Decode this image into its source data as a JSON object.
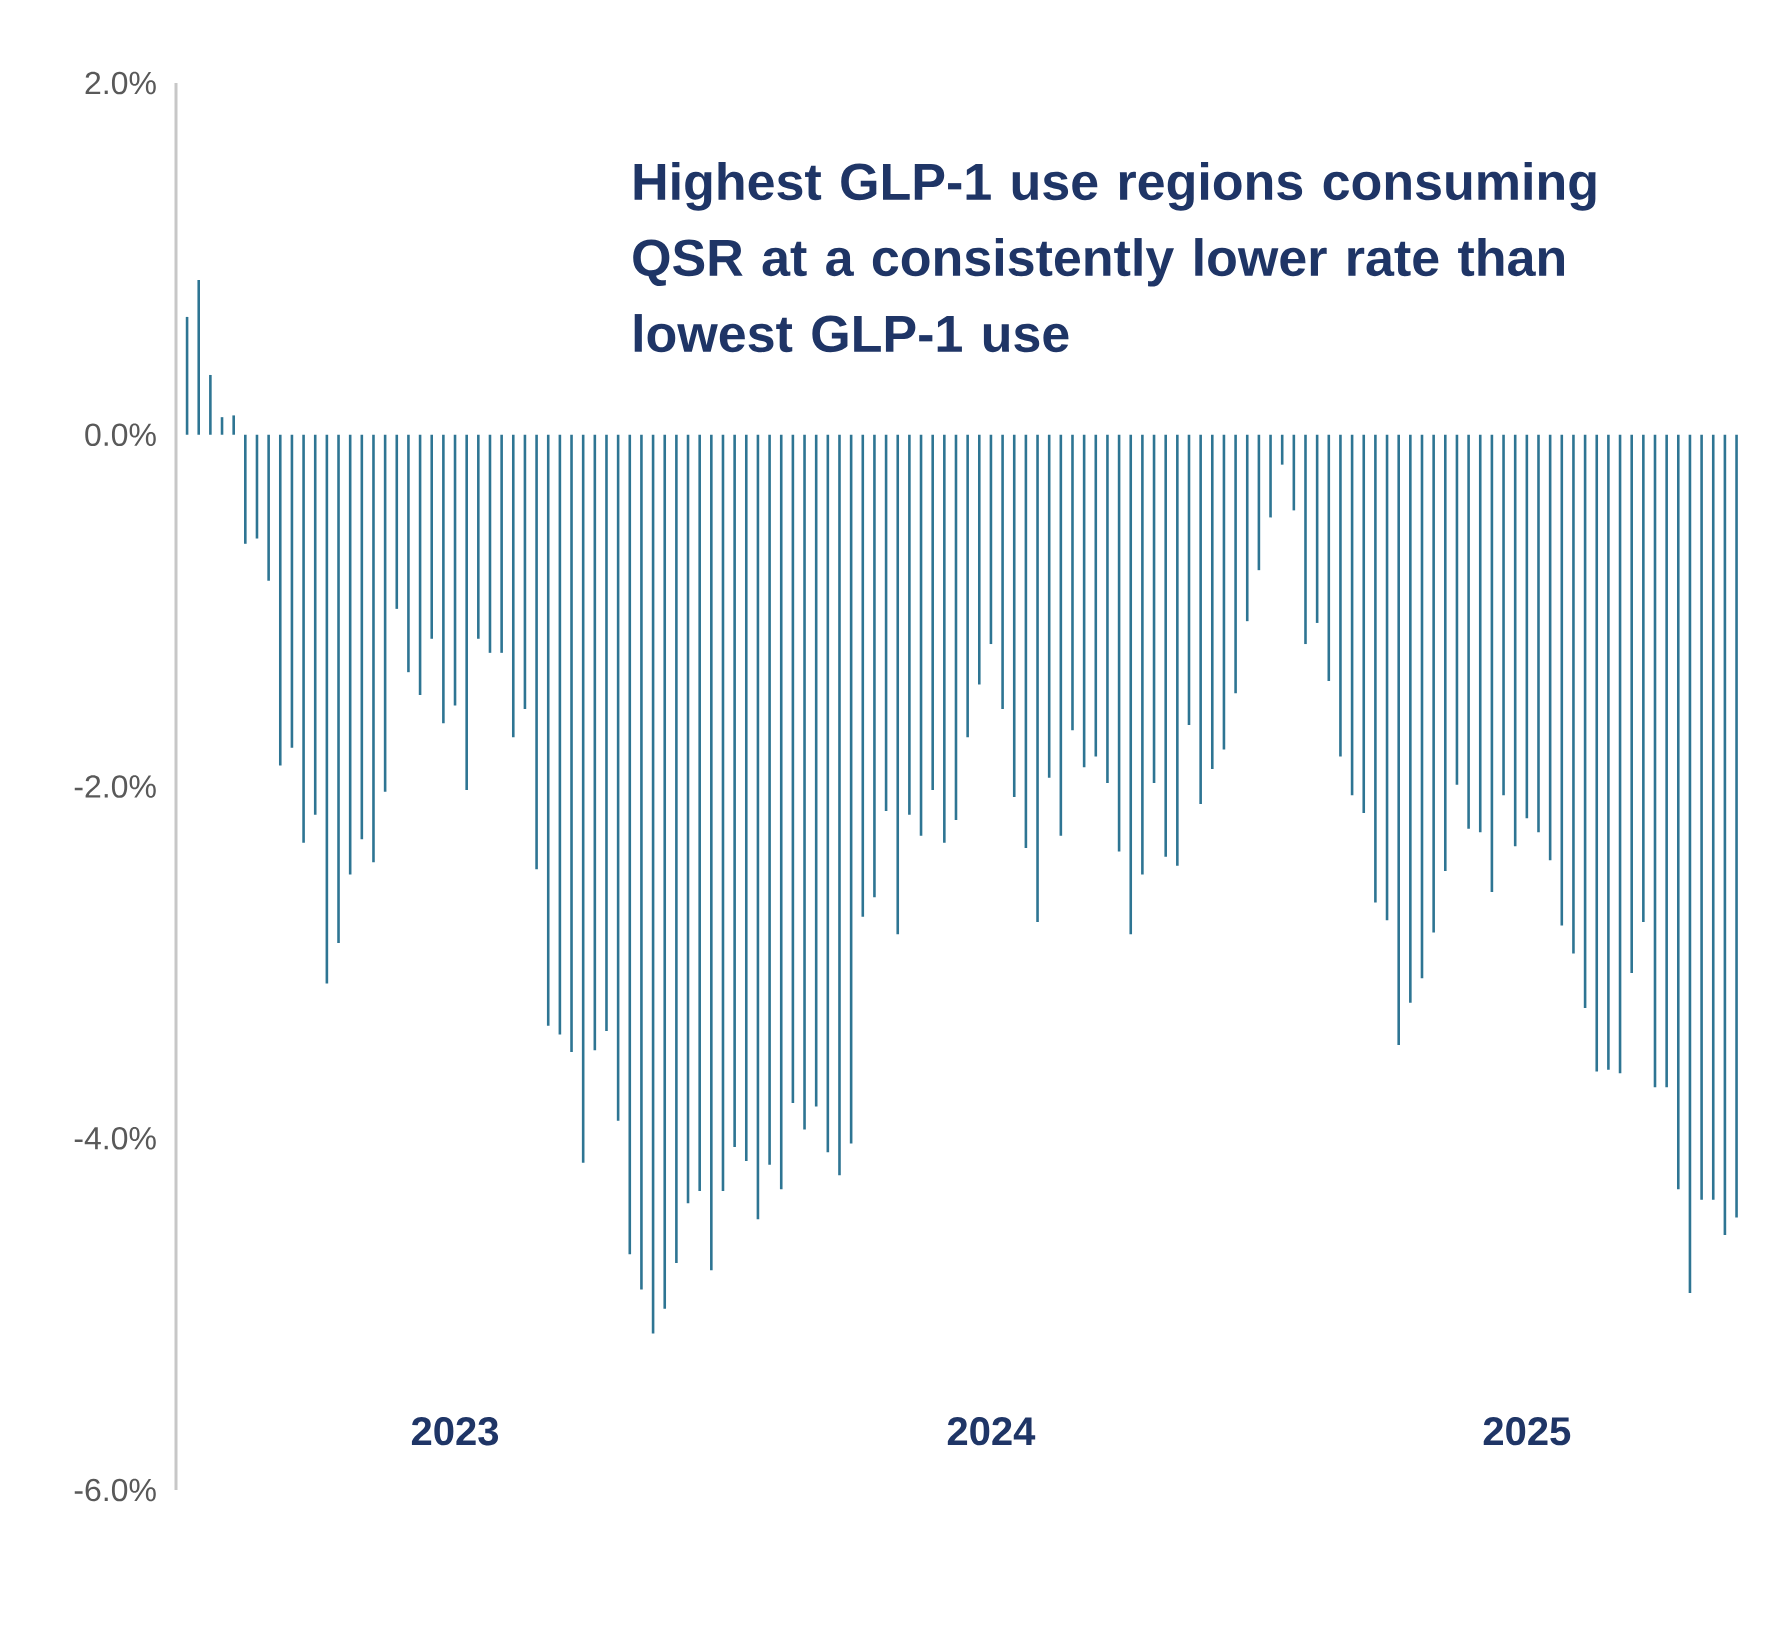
{
  "chart_data": {
    "type": "bar",
    "title": "Highest GLP-1 use regions consuming QSR at a consistently lower rate than lowest GLP-1 use",
    "categories": [
      null,
      null,
      null,
      null,
      null,
      null,
      null,
      null,
      null,
      null,
      null,
      null,
      null,
      null,
      null,
      null,
      null,
      null,
      null,
      null,
      null,
      null,
      null,
      "2023",
      null,
      null,
      null,
      null,
      null,
      null,
      null,
      null,
      null,
      null,
      null,
      null,
      null,
      null,
      null,
      null,
      null,
      null,
      null,
      null,
      null,
      null,
      null,
      null,
      null,
      null,
      null,
      null,
      null,
      null,
      null,
      null,
      null,
      null,
      null,
      null,
      null,
      null,
      null,
      null,
      null,
      null,
      null,
      null,
      null,
      "2024",
      null,
      null,
      null,
      null,
      null,
      null,
      null,
      null,
      null,
      null,
      null,
      null,
      null,
      null,
      null,
      null,
      null,
      null,
      null,
      null,
      null,
      null,
      null,
      null,
      null,
      null,
      null,
      null,
      null,
      null,
      null,
      null,
      null,
      null,
      null,
      null,
      null,
      null,
      null,
      null,
      null,
      null,
      null,
      null,
      null,
      "2025",
      null,
      null,
      null,
      null,
      null,
      null,
      null,
      null,
      null,
      null,
      null,
      null,
      null,
      null,
      null,
      null,
      null,
      null
    ],
    "values": [
      0.67,
      0.88,
      0.34,
      0.1,
      0.11,
      -0.62,
      -0.59,
      -0.83,
      -1.88,
      -1.78,
      -2.32,
      -2.16,
      -3.12,
      -2.89,
      -2.5,
      -2.3,
      -2.43,
      -2.03,
      -0.99,
      -1.35,
      -1.48,
      -1.16,
      -1.64,
      -1.54,
      -2.02,
      -1.16,
      -1.24,
      -1.24,
      -1.72,
      -1.56,
      -2.47,
      -3.36,
      -3.41,
      -3.51,
      -4.14,
      -3.5,
      -3.39,
      -3.9,
      -4.66,
      -4.86,
      -5.11,
      -4.97,
      -4.71,
      -4.37,
      -4.3,
      -4.75,
      -4.3,
      -4.05,
      -4.13,
      -4.46,
      -4.15,
      -4.29,
      -3.8,
      -3.95,
      -3.82,
      -4.08,
      -4.21,
      -4.03,
      -2.74,
      -2.63,
      -2.14,
      -2.84,
      -2.16,
      -2.28,
      -2.02,
      -2.32,
      -2.19,
      -1.72,
      -1.42,
      -1.19,
      -1.56,
      -2.06,
      -2.35,
      -2.77,
      -1.95,
      -2.28,
      -1.68,
      -1.89,
      -1.83,
      -1.98,
      -2.37,
      -2.84,
      -2.5,
      -1.98,
      -2.4,
      -2.45,
      -1.65,
      -2.1,
      -1.9,
      -1.79,
      -1.47,
      -1.06,
      -0.77,
      -0.47,
      -0.17,
      -0.43,
      -1.19,
      -1.07,
      -1.4,
      -1.83,
      -2.05,
      -2.15,
      -2.66,
      -2.76,
      -3.47,
      -3.23,
      -3.09,
      -2.83,
      -2.48,
      -1.99,
      -2.24,
      -2.26,
      -2.6,
      -2.05,
      -2.34,
      -2.18,
      -2.26,
      -2.42,
      -2.79,
      -2.95,
      -3.26,
      -3.62,
      -3.61,
      -3.63,
      -3.06,
      -2.77,
      -3.71,
      -3.71,
      -4.29,
      -4.88,
      -4.35,
      -4.35,
      -4.55,
      -4.45
    ],
    "color": "#2e7593",
    "ylim": [
      -6,
      2
    ],
    "yticks": [
      {
        "value": 2,
        "label": "2.0%"
      },
      {
        "value": 0,
        "label": "0.0%"
      },
      {
        "value": -2,
        "label": "-2.0%"
      },
      {
        "value": -4,
        "label": "-4.0%"
      },
      {
        "value": -6,
        "label": "-6.0%"
      }
    ]
  }
}
